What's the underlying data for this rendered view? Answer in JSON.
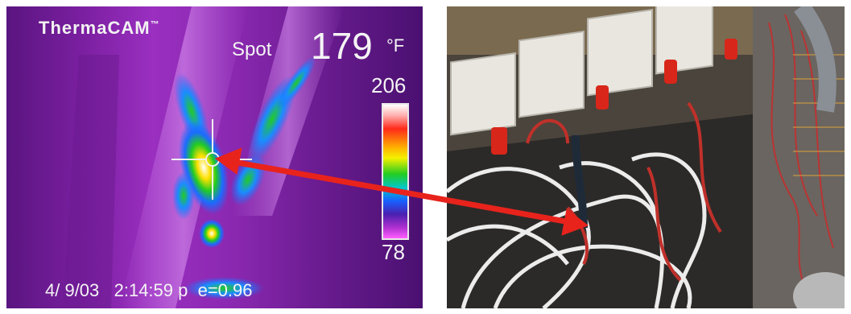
{
  "thermal": {
    "brand": "ThermaCAM",
    "brand_mark": "™",
    "spot_label": "Spot",
    "spot_value": "179",
    "spot_unit": "°F",
    "scale_max": "206",
    "scale_min": "78",
    "timestamp": "4/ 9/03   2:14:59 p  e=0.96"
  },
  "colors": {
    "arrow": "#e8231c",
    "thermal_background": "#8a28b0"
  }
}
